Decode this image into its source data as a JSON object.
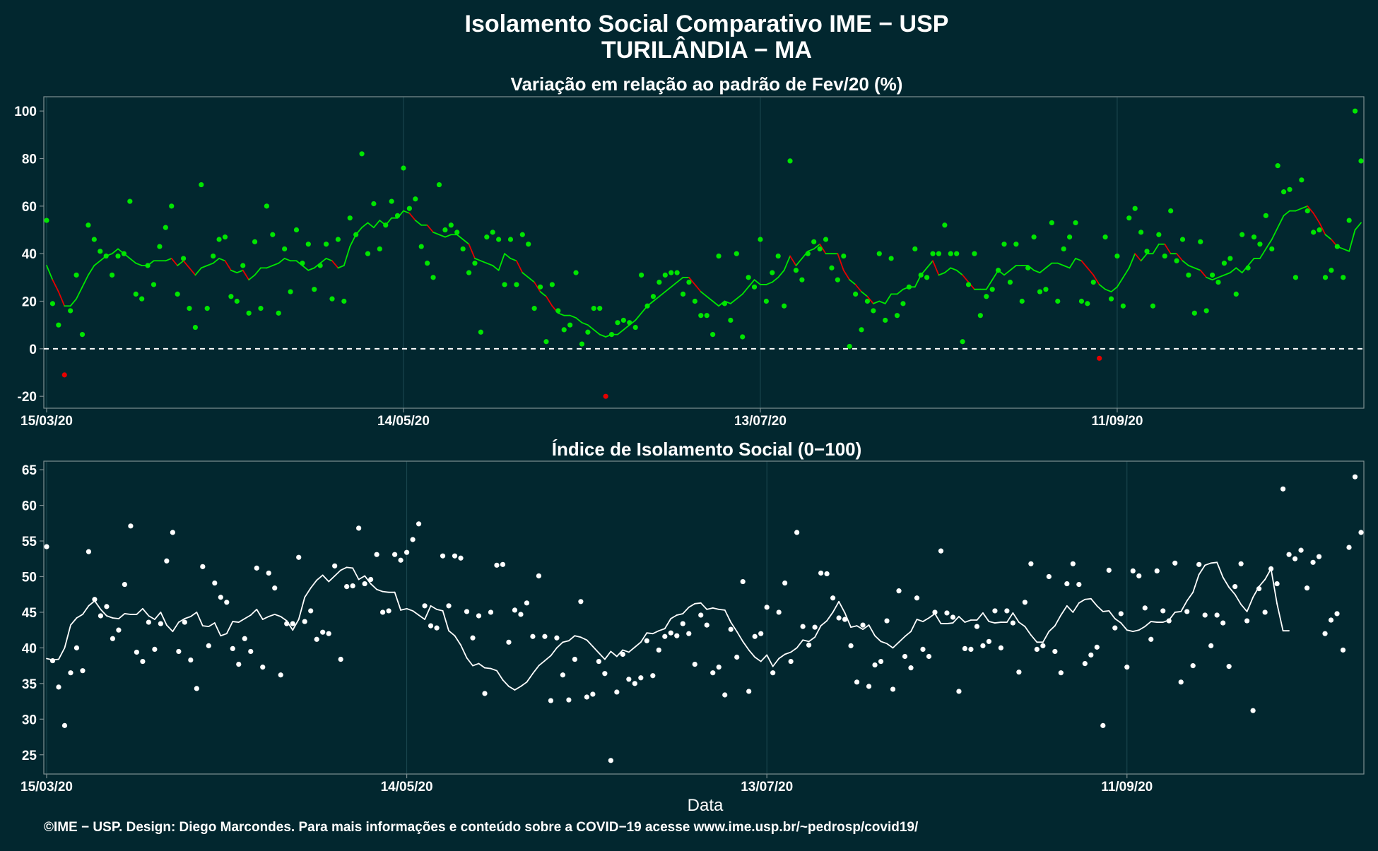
{
  "title_line1": "Isolamento Social Comparativo IME − USP",
  "title_line2": "TURILÂNDIA − MA",
  "xlabel": "Data",
  "footer": "©IME − USP. Design: Diego Marcondes. Para mais informações e conteúdo sobre a COVID−19 acesse www.ime.usp.br/~pedrosp/covid19/",
  "colors": {
    "background": "#02272f",
    "panel_border": "#7f8f92",
    "grid": "#1d4a52",
    "positive": "#00e600",
    "negative": "#e60000",
    "index": "#ffffff",
    "text": "#ffffff"
  },
  "chart_data": [
    {
      "type": "scatter",
      "title": "Variação em relação ao padrão de Fev/20 (%)",
      "x_start": "15/03/20",
      "x_end": "08/11/20",
      "xtick_labels": [
        "15/03/20",
        "14/05/20",
        "13/07/20",
        "11/09/20"
      ],
      "xtick_days": [
        0,
        60,
        120,
        180
      ],
      "ylim": [
        -25,
        106
      ],
      "yticks": [
        -20,
        0,
        20,
        40,
        60,
        80,
        100
      ],
      "reference_line": 0,
      "grid": true,
      "series": [
        {
          "values": [
            54,
            19,
            10,
            -11,
            16,
            31,
            6,
            52,
            46,
            41,
            39,
            31,
            39,
            40,
            62,
            23,
            21,
            35,
            27,
            43,
            51,
            60,
            23,
            38,
            17,
            9,
            69,
            17,
            39,
            46,
            47,
            22,
            20,
            35,
            15,
            45,
            17,
            60,
            48,
            15,
            42,
            24,
            50,
            36,
            44,
            25,
            35,
            44,
            21,
            46,
            20,
            55,
            48,
            82,
            40,
            61,
            42,
            52,
            62,
            56,
            76,
            59,
            63,
            43,
            36,
            30,
            69,
            50,
            52,
            49,
            42,
            32,
            36,
            7,
            47,
            49,
            46,
            27,
            46,
            27,
            48,
            44,
            17,
            26,
            3,
            27,
            16,
            8,
            10,
            32,
            2,
            7,
            17,
            17,
            -20,
            6,
            11,
            12,
            11,
            9,
            31,
            18,
            22,
            28,
            31,
            32,
            32,
            23,
            28,
            20,
            14,
            14,
            6,
            39,
            19,
            12,
            40,
            5,
            30,
            26,
            46,
            20,
            32,
            39,
            18,
            79,
            33,
            29,
            40,
            45,
            42,
            46,
            34,
            29,
            39,
            1,
            23,
            8,
            20,
            16,
            40,
            12,
            38,
            14,
            19,
            26,
            42,
            31,
            30,
            40,
            40,
            52,
            40,
            40,
            3,
            27,
            40,
            14,
            22,
            25,
            33,
            44,
            28,
            44,
            20,
            34,
            47,
            24,
            25,
            53,
            20,
            42,
            47,
            53,
            20,
            19,
            28,
            -4,
            47,
            21,
            39,
            18,
            55,
            59,
            49,
            41,
            18,
            48,
            39,
            58,
            37,
            46,
            31,
            15,
            45,
            16,
            31,
            28,
            36,
            38,
            23,
            48,
            34,
            47,
            44,
            56,
            42,
            77,
            66,
            67,
            30,
            71,
            58,
            49,
            50,
            30,
            33,
            43,
            30,
            54,
            100,
            79
          ]
        },
        {
          "name": "",
          "values": [
            35,
            29,
            24,
            18,
            18,
            21,
            26,
            31,
            35,
            37,
            39,
            40,
            42,
            40,
            38,
            36,
            35,
            35,
            37,
            37,
            37,
            38,
            35,
            37,
            34,
            31,
            34,
            35,
            36,
            38,
            37,
            33,
            32,
            33,
            29,
            31,
            34,
            34,
            35,
            36,
            38,
            37,
            37,
            35,
            33,
            34,
            36,
            38,
            37,
            34,
            35,
            43,
            48,
            51,
            53,
            51,
            54,
            52,
            55,
            55,
            58,
            57,
            54,
            52,
            52,
            49,
            48,
            47,
            48,
            48,
            46,
            44,
            38,
            37,
            36,
            35,
            33,
            40,
            38,
            37,
            32,
            30,
            28,
            24,
            22,
            18,
            15,
            14,
            14,
            13,
            11,
            10,
            8,
            6,
            5,
            6,
            6,
            8,
            10,
            12,
            15,
            18,
            20,
            22,
            24,
            26,
            28,
            30,
            30,
            27,
            24,
            22,
            20,
            18,
            20,
            19,
            21,
            23,
            26,
            29,
            27,
            27,
            28,
            30,
            33,
            39,
            35,
            38,
            41,
            42,
            44,
            40,
            40,
            40,
            33,
            29,
            27,
            24,
            22,
            19,
            20,
            19,
            23,
            23,
            25,
            26,
            26,
            31,
            34,
            37,
            31,
            32,
            34,
            33,
            31,
            28,
            25,
            25,
            25,
            29,
            33,
            31,
            33,
            35,
            35,
            35,
            33,
            32,
            34,
            36,
            36,
            35,
            34,
            38,
            37,
            34,
            31,
            27,
            25,
            24,
            26,
            30,
            34,
            40,
            37,
            40,
            40,
            44,
            44,
            40,
            40,
            37,
            35,
            34,
            33,
            30,
            29,
            30,
            31,
            32,
            34,
            32,
            35,
            38,
            38,
            42,
            46,
            51,
            56,
            58,
            58,
            59,
            60,
            57,
            53,
            48,
            46,
            43,
            42,
            41,
            50,
            53
          ]
        }
      ]
    },
    {
      "type": "scatter",
      "title": "Índice de Isolamento Social (0−100)",
      "x_start": "15/03/20",
      "x_end": "08/11/20",
      "xtick_labels": [
        "15/03/20",
        "14/05/20",
        "13/07/20",
        "11/09/20"
      ],
      "xtick_days": [
        0,
        60,
        120,
        180
      ],
      "ylim": [
        22.3,
        66.2
      ],
      "yticks": [
        25,
        30,
        35,
        40,
        45,
        50,
        55,
        60,
        65
      ],
      "grid": true,
      "series": [
        {
          "values": [
            54.2,
            38.2,
            34.5,
            29.1,
            36.5,
            40.0,
            36.8,
            53.5,
            46.8,
            44.5,
            45.8,
            41.3,
            42.5,
            48.9,
            57.1,
            39.4,
            38.1,
            43.6,
            39.8,
            43.4,
            52.2,
            56.2,
            39.5,
            43.6,
            38.3,
            34.3,
            51.4,
            40.3,
            49.1,
            47.1,
            46.4,
            39.9,
            37.7,
            41.3,
            39.5,
            51.2,
            37.3,
            50.5,
            48.4,
            36.2,
            43.4,
            43.4,
            52.7,
            43.7,
            45.2,
            41.2,
            42.2,
            42.0,
            51.5,
            38.4,
            48.6,
            48.7,
            56.8,
            49.0,
            49.6,
            53.1,
            45.0,
            45.2,
            53.1,
            52.3,
            53.4,
            55.2,
            57.4,
            45.9,
            43.1,
            42.8,
            52.9,
            45.9,
            52.9,
            52.6,
            45.1,
            41.4,
            44.5,
            33.6,
            45.0,
            51.6,
            51.7,
            40.8,
            45.3,
            44.7,
            46.3,
            41.6,
            50.1,
            41.6,
            32.6,
            41.4,
            36.2,
            32.7,
            38.4,
            46.5,
            33.1,
            33.5,
            38.1,
            36.4,
            24.2,
            33.8,
            39.1,
            35.6,
            35.0,
            35.8,
            41.0,
            36.1,
            39.7,
            41.6,
            42.1,
            41.7,
            43.4,
            42.0,
            37.7,
            44.6,
            43.2,
            36.5,
            37.3,
            33.4,
            42.6,
            38.7,
            49.3,
            33.9,
            41.6,
            42.0,
            45.7,
            36.5,
            45.0,
            49.1,
            38.1,
            56.2,
            43.0,
            40.4,
            42.9,
            50.5,
            50.4,
            47.0,
            44.2,
            44.0,
            40.3,
            35.2,
            43.2,
            34.6,
            37.6,
            38.1,
            43.8,
            34.2,
            48.0,
            38.8,
            37.2,
            47.0,
            39.8,
            38.8,
            45.0,
            53.6,
            44.9,
            44.3,
            33.9,
            39.9,
            39.8,
            43.0,
            40.3,
            40.9,
            45.2,
            40.0,
            45.2,
            43.5,
            36.6,
            46.4,
            51.8,
            39.8,
            40.3,
            50.0,
            39.5,
            36.5,
            49.0,
            51.8,
            48.9,
            37.8,
            39.0,
            40.1,
            29.1,
            50.9,
            42.8,
            44.8,
            37.3,
            50.8,
            50.1,
            45.6,
            41.2,
            50.8,
            45.2,
            43.8,
            51.9,
            35.2,
            45.1,
            37.5,
            51.7,
            44.6,
            40.3,
            44.6,
            43.5,
            37.4,
            48.6,
            51.8,
            43.8,
            31.2,
            48.3,
            45.0,
            51.1,
            49.0,
            62.3,
            53.1,
            52.5,
            53.7,
            48.4,
            52.0,
            52.8,
            42.0,
            43.9,
            44.8,
            39.7,
            54.1,
            64.0,
            56.2
          ],
          "color": "#ffffff"
        },
        {
          "name": "",
          "values": [
            38.5,
            38.3,
            38.4,
            40.0,
            43.2,
            44.2,
            44.7,
            45.9,
            46.6,
            45.4,
            44.5,
            44.2,
            44.1,
            44.8,
            44.7,
            44.7,
            45.5,
            44.5,
            44.0,
            45.0,
            43.2,
            42.3,
            43.6,
            44.1,
            44.4,
            45.0,
            43.1,
            43.0,
            43.5,
            41.7,
            42.0,
            43.7,
            43.6,
            44.1,
            44.6,
            45.4,
            44.0,
            44.4,
            44.7,
            44.4,
            43.8,
            42.5,
            44.0,
            47.1,
            48.4,
            49.5,
            50.2,
            49.3,
            50.1,
            50.9,
            51.3,
            51.2,
            49.6,
            50.1,
            49.0,
            48.2,
            47.9,
            47.8,
            47.8,
            45.3,
            45.5,
            45.2,
            44.6,
            44.0,
            45.9,
            45.4,
            45.2,
            42.4,
            41.7,
            40.4,
            38.6,
            37.5,
            37.8,
            37.2,
            37.1,
            36.8,
            35.5,
            34.6,
            34.1,
            34.6,
            35.2,
            36.4,
            37.5,
            38.2,
            38.9,
            40.0,
            40.8,
            41.0,
            41.7,
            41.5,
            41.1,
            40.2,
            39.3,
            38.4,
            39.5,
            38.8,
            39.7,
            39.4,
            40.1,
            40.8,
            42.1,
            42.0,
            42.4,
            42.7,
            44.1,
            44.6,
            44.8,
            45.7,
            46.2,
            46.3,
            45.4,
            45.6,
            45.4,
            45.3,
            43.6,
            42.3,
            40.9,
            39.7,
            38.7,
            38.1,
            39.0,
            37.4,
            38.5,
            39.1,
            39.4,
            40.0,
            41.1,
            40.9,
            41.5,
            43.1,
            43.8,
            45.0,
            46.5,
            44.9,
            42.9,
            43.1,
            42.6,
            43.2,
            41.7,
            40.9,
            40.6,
            40.0,
            40.8,
            41.6,
            42.3,
            44.0,
            43.7,
            44.2,
            44.8,
            43.4,
            43.4,
            43.5,
            44.4,
            43.6,
            43.9,
            43.9,
            44.9,
            43.7,
            43.5,
            43.6,
            43.6,
            44.9,
            43.6,
            43.0,
            41.8,
            40.8,
            40.8,
            42.3,
            43.1,
            44.6,
            45.9,
            45.0,
            46.3,
            46.8,
            46.9,
            45.9,
            45.1,
            45.2,
            44.1,
            43.5,
            42.5,
            42.3,
            42.5,
            43.0,
            43.7,
            43.6,
            43.6,
            43.9,
            45.0,
            45.1,
            46.6,
            47.8,
            50.3,
            51.6,
            51.9,
            52.0,
            49.9,
            48.5,
            47.5,
            46.1,
            45.1,
            47.1,
            48.6,
            49.6,
            51.1,
            46.2,
            42.4,
            42.4
          ]
        }
      ]
    }
  ]
}
